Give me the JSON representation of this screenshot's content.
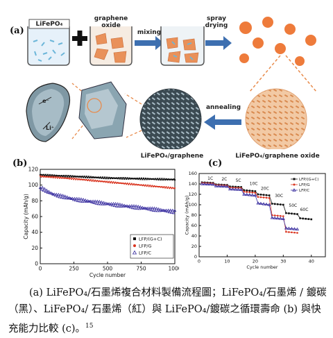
{
  "panel_a": {
    "label": "(a)",
    "beaker1_label": "LiFePO₄",
    "beaker2_label": "graphene oxide",
    "step_mixing": "mixing",
    "step_spray": "spray drying",
    "step_annealing": "annealing",
    "result1_label": "LiFePO₄/graphene",
    "result2_label": "LiFePO₄/graphene oxide",
    "ion_e": "e⁻",
    "ion_li": "Li⁺"
  },
  "chart_data": [
    {
      "type": "scatter",
      "panel": "(b)",
      "xlabel": "Cycle number",
      "ylabel": "Capacity (mAh/g)",
      "xlim": [
        0,
        1000
      ],
      "ylim": [
        0,
        120
      ],
      "xticks": [
        0,
        250,
        500,
        750,
        1000
      ],
      "yticks": [
        0,
        20,
        40,
        60,
        80,
        100,
        120
      ],
      "legend_position": "bottom-right",
      "series": [
        {
          "name": "LFP/(G+C)",
          "color": "#111111",
          "x": [
            0,
            100,
            250,
            500,
            750,
            1000
          ],
          "values": [
            113,
            112,
            111,
            109,
            108,
            107
          ]
        },
        {
          "name": "LFP/G",
          "color": "#d9341f",
          "x": [
            0,
            100,
            250,
            500,
            750,
            1000
          ],
          "values": [
            111,
            110,
            108,
            104,
            100,
            96
          ]
        },
        {
          "name": "LFP/C",
          "color": "#3a2fa0",
          "x": [
            0,
            10,
            50,
            100,
            250,
            500,
            750,
            1000
          ],
          "values": [
            95,
            96,
            92,
            88,
            82,
            76,
            71,
            66
          ]
        }
      ]
    },
    {
      "type": "line",
      "panel": "(c)",
      "xlabel": "Cycle number",
      "ylabel": "Capacity (mAh/g)",
      "xlim": [
        0,
        45
      ],
      "ylim": [
        0,
        160
      ],
      "xticks": [
        0,
        10,
        20,
        30,
        40
      ],
      "yticks": [
        0,
        20,
        40,
        60,
        80,
        100,
        120,
        140,
        160
      ],
      "legend_position": "top-right",
      "rate_labels": [
        "1C",
        "2C",
        "5C",
        "10C",
        "20C",
        "30C",
        "50C",
        "60C"
      ],
      "series": [
        {
          "name": "LFP/(G+C)",
          "color": "#111111",
          "x": [
            1,
            5,
            6,
            10,
            11,
            15,
            16,
            20,
            21,
            25,
            26,
            30,
            31,
            35,
            36,
            40
          ],
          "values": [
            143,
            142,
            139,
            138,
            135,
            134,
            128,
            126,
            120,
            118,
            102,
            100,
            84,
            82,
            74,
            72
          ]
        },
        {
          "name": "LFP/G",
          "color": "#d9341f",
          "x": [
            1,
            5,
            6,
            10,
            11,
            15,
            16,
            20,
            21,
            25,
            26,
            30,
            31,
            35
          ],
          "values": [
            142,
            141,
            138,
            137,
            133,
            132,
            125,
            123,
            115,
            113,
            80,
            78,
            48,
            46
          ]
        },
        {
          "name": "LFP/C",
          "color": "#3a2fa0",
          "x": [
            1,
            5,
            6,
            10,
            11,
            15,
            16,
            20,
            21,
            25,
            26,
            30,
            31,
            35
          ],
          "values": [
            140,
            139,
            136,
            135,
            130,
            129,
            120,
            118,
            103,
            100,
            75,
            73,
            55,
            53
          ]
        }
      ]
    }
  ],
  "panel_b": {
    "label": "(b)"
  },
  "panel_c": {
    "label": "(c)"
  },
  "caption": {
    "text": "(a) LiFePO₄/石墨烯複合材料製備流程圖；LiFePO₄/石墨烯 / 鍍碳（黑）、LiFePO₄/ 石墨烯（紅）與 LiFePO₄/鍍碳之循環壽命 (b) 與快充能力比較 (c)。",
    "footnote": "15"
  }
}
